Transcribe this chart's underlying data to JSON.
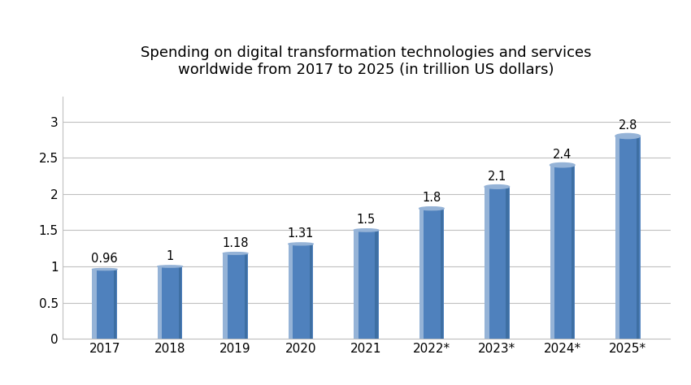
{
  "title": "Spending on digital transformation technologies and services\nworldwide from 2017 to 2025 (in trillion US dollars)",
  "categories": [
    "2017",
    "2018",
    "2019",
    "2020",
    "2021",
    "2022*",
    "2023*",
    "2024*",
    "2025*"
  ],
  "values": [
    0.96,
    1.0,
    1.18,
    1.31,
    1.5,
    1.8,
    2.1,
    2.4,
    2.8
  ],
  "bar_color_main": "#4F81BD",
  "bar_color_light": "#95B3D7",
  "bar_color_dark": "#2E5F8A",
  "ylim": [
    0,
    3.35
  ],
  "yticks": [
    0,
    0.5,
    1.0,
    1.5,
    2.0,
    2.5,
    3.0
  ],
  "grid_color": "#C0C0C0",
  "background_color": "#FFFFFF",
  "title_fontsize": 13,
  "tick_fontsize": 11,
  "value_fontsize": 10.5,
  "bar_width": 0.38
}
